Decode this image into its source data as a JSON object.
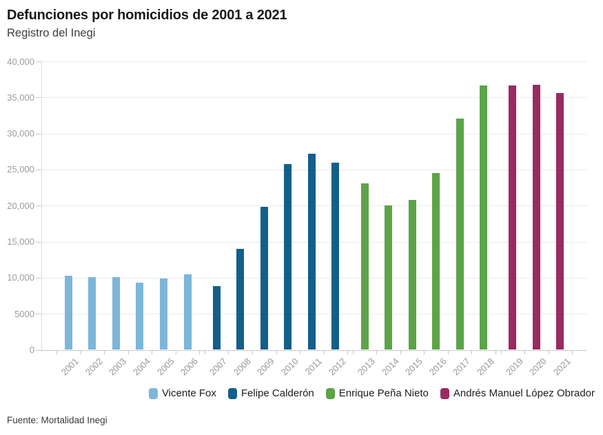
{
  "header": {
    "title": "Defunciones por homicidios de 2001 a 2021",
    "subtitle": "Registro del Inegi"
  },
  "chart_data": {
    "type": "bar",
    "title": "Defunciones por homicidios de 2001 a 2021",
    "subtitle": "Registro del Inegi",
    "categories": [
      "2001",
      "2002",
      "2003",
      "2004",
      "2005",
      "2006",
      "2007",
      "2008",
      "2009",
      "2010",
      "2011",
      "2012",
      "2013",
      "2014",
      "2015",
      "2016",
      "2017",
      "2018",
      "2019",
      "2020",
      "2021"
    ],
    "series": [
      {
        "name": "Vicente Fox",
        "color": "#7cb6d9",
        "categories": [
          "2001",
          "2002",
          "2003",
          "2004",
          "2005",
          "2006"
        ],
        "values": [
          10285,
          10088,
          10087,
          9329,
          9921,
          10452
        ]
      },
      {
        "name": "Felipe Calderón",
        "color": "#135f89",
        "categories": [
          "2007",
          "2008",
          "2009",
          "2010",
          "2011",
          "2012"
        ],
        "values": [
          8867,
          14006,
          19803,
          25757,
          27213,
          25967
        ]
      },
      {
        "name": "Enrique Peña Nieto",
        "color": "#5ba447",
        "categories": [
          "2013",
          "2014",
          "2015",
          "2016",
          "2017",
          "2018"
        ],
        "values": [
          23063,
          20010,
          20762,
          24559,
          32079,
          36685
        ]
      },
      {
        "name": "Andrés Manuel López Obrador",
        "color": "#982b61",
        "categories": [
          "2019",
          "2020",
          "2021"
        ],
        "values": [
          36661,
          36773,
          35625
        ]
      }
    ],
    "xlabel": "",
    "ylabel": "",
    "ylim": [
      0,
      40000
    ],
    "y_tick_labels": [
      "0",
      "5000",
      "10,000",
      "15,000",
      "20,000",
      "25,000",
      "30,000",
      "35,000",
      "40,000"
    ],
    "y_tick_values": [
      0,
      5000,
      10000,
      15000,
      20000,
      25000,
      30000,
      35000,
      40000
    ],
    "grid": "horizontal",
    "legend_position": "bottom-right"
  },
  "legend": {
    "items": [
      {
        "label": "Vicente Fox",
        "color": "#7cb6d9"
      },
      {
        "label": "Felipe Calderón",
        "color": "#135f89"
      },
      {
        "label": "Enrique Peña Nieto",
        "color": "#5ba447"
      },
      {
        "label": "Andrés Manuel López Obrador",
        "color": "#982b61"
      }
    ]
  },
  "footer": {
    "source": "Fuente: Mortalidad Inegi"
  }
}
